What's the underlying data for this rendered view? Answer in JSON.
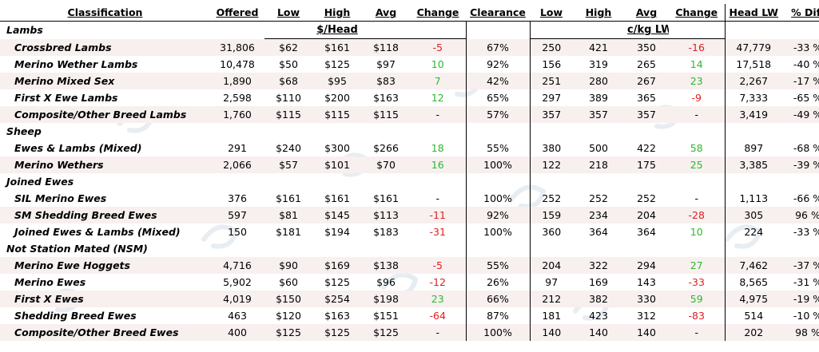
{
  "headers": [
    "Classification",
    "Offered",
    "Low",
    "High",
    "Avg",
    "Change",
    "Clearance",
    "Low",
    "High",
    "Avg",
    "Change",
    "Head LW",
    "% Diff"
  ],
  "subheaders": {
    "head": "$/Head",
    "cents": "c/kg LW"
  },
  "colors": {
    "positive": "#2db82d",
    "negative": "#e02020",
    "row_band": "#f7f0ef"
  },
  "rows": [
    {
      "type": "cat",
      "name": "Lambs"
    },
    {
      "type": "data",
      "name": "Crossbred Lambs",
      "offered": "31,806",
      "low": "$62",
      "high": "$161",
      "avg": "$118",
      "change": "-5",
      "clearance": "67%",
      "cLow": "250",
      "cHigh": "421",
      "cAvg": "350",
      "cChange": "-16",
      "headLW": "47,779",
      "pctDiff": "-33 %"
    },
    {
      "type": "data",
      "name": "Merino Wether Lambs",
      "offered": "10,478",
      "low": "$50",
      "high": "$125",
      "avg": "$97",
      "change": "10",
      "clearance": "92%",
      "cLow": "156",
      "cHigh": "319",
      "cAvg": "265",
      "cChange": "14",
      "headLW": "17,518",
      "pctDiff": "-40 %"
    },
    {
      "type": "data",
      "name": "Merino Mixed Sex",
      "offered": "1,890",
      "low": "$68",
      "high": "$95",
      "avg": "$83",
      "change": "7",
      "clearance": "42%",
      "cLow": "251",
      "cHigh": "280",
      "cAvg": "267",
      "cChange": "23",
      "headLW": "2,267",
      "pctDiff": "-17 %"
    },
    {
      "type": "data",
      "name": "First X Ewe Lambs",
      "offered": "2,598",
      "low": "$110",
      "high": "$200",
      "avg": "$163",
      "change": "12",
      "clearance": "65%",
      "cLow": "297",
      "cHigh": "389",
      "cAvg": "365",
      "cChange": "-9",
      "headLW": "7,333",
      "pctDiff": "-65 %"
    },
    {
      "type": "data",
      "name": "Composite/Other Breed Lambs",
      "offered": "1,760",
      "low": "$115",
      "high": "$115",
      "avg": "$115",
      "change": "-",
      "clearance": "57%",
      "cLow": "357",
      "cHigh": "357",
      "cAvg": "357",
      "cChange": "-",
      "headLW": "3,419",
      "pctDiff": "-49 %"
    },
    {
      "type": "cat",
      "name": "Sheep"
    },
    {
      "type": "data",
      "name": "Ewes & Lambs (Mixed)",
      "offered": "291",
      "low": "$240",
      "high": "$300",
      "avg": "$266",
      "change": "18",
      "clearance": "55%",
      "cLow": "380",
      "cHigh": "500",
      "cAvg": "422",
      "cChange": "58",
      "headLW": "897",
      "pctDiff": "-68 %"
    },
    {
      "type": "data",
      "name": "Merino Wethers",
      "offered": "2,066",
      "low": "$57",
      "high": "$101",
      "avg": "$70",
      "change": "16",
      "clearance": "100%",
      "cLow": "122",
      "cHigh": "218",
      "cAvg": "175",
      "cChange": "25",
      "headLW": "3,385",
      "pctDiff": "-39 %"
    },
    {
      "type": "cat",
      "name": "Joined Ewes"
    },
    {
      "type": "data",
      "name": "SIL Merino Ewes",
      "offered": "376",
      "low": "$161",
      "high": "$161",
      "avg": "$161",
      "change": "-",
      "clearance": "100%",
      "cLow": "252",
      "cHigh": "252",
      "cAvg": "252",
      "cChange": "-",
      "headLW": "1,113",
      "pctDiff": "-66 %"
    },
    {
      "type": "data",
      "name": "SM Shedding Breed Ewes",
      "offered": "597",
      "low": "$81",
      "high": "$145",
      "avg": "$113",
      "change": "-11",
      "clearance": "92%",
      "cLow": "159",
      "cHigh": "234",
      "cAvg": "204",
      "cChange": "-28",
      "headLW": "305",
      "pctDiff": "96 %"
    },
    {
      "type": "data",
      "name": "Joined Ewes & Lambs (Mixed)",
      "offered": "150",
      "low": "$181",
      "high": "$194",
      "avg": "$183",
      "change": "-31",
      "clearance": "100%",
      "cLow": "360",
      "cHigh": "364",
      "cAvg": "364",
      "cChange": "10",
      "headLW": "224",
      "pctDiff": "-33 %"
    },
    {
      "type": "cat",
      "name": "Not Station Mated (NSM)"
    },
    {
      "type": "data",
      "name": "Merino Ewe Hoggets",
      "offered": "4,716",
      "low": "$90",
      "high": "$169",
      "avg": "$138",
      "change": "-5",
      "clearance": "55%",
      "cLow": "204",
      "cHigh": "322",
      "cAvg": "294",
      "cChange": "27",
      "headLW": "7,462",
      "pctDiff": "-37 %"
    },
    {
      "type": "data",
      "name": "Merino Ewes",
      "offered": "5,902",
      "low": "$60",
      "high": "$125",
      "avg": "$96",
      "change": "-12",
      "clearance": "26%",
      "cLow": "97",
      "cHigh": "169",
      "cAvg": "143",
      "cChange": "-33",
      "headLW": "8,565",
      "pctDiff": "-31 %"
    },
    {
      "type": "data",
      "name": "First X Ewes",
      "offered": "4,019",
      "low": "$150",
      "high": "$254",
      "avg": "$198",
      "change": "23",
      "clearance": "66%",
      "cLow": "212",
      "cHigh": "382",
      "cAvg": "330",
      "cChange": "59",
      "headLW": "4,975",
      "pctDiff": "-19 %"
    },
    {
      "type": "data",
      "name": "Shedding Breed Ewes",
      "offered": "463",
      "low": "$120",
      "high": "$163",
      "avg": "$151",
      "change": "-64",
      "clearance": "87%",
      "cLow": "181",
      "cHigh": "423",
      "cAvg": "312",
      "cChange": "-83",
      "headLW": "514",
      "pctDiff": "-10 %"
    },
    {
      "type": "data",
      "name": "Composite/Other Breed Ewes",
      "offered": "400",
      "low": "$125",
      "high": "$125",
      "avg": "$125",
      "change": "-",
      "clearance": "100%",
      "cLow": "140",
      "cHigh": "140",
      "cAvg": "140",
      "cChange": "-",
      "headLW": "202",
      "pctDiff": "98 %"
    }
  ]
}
